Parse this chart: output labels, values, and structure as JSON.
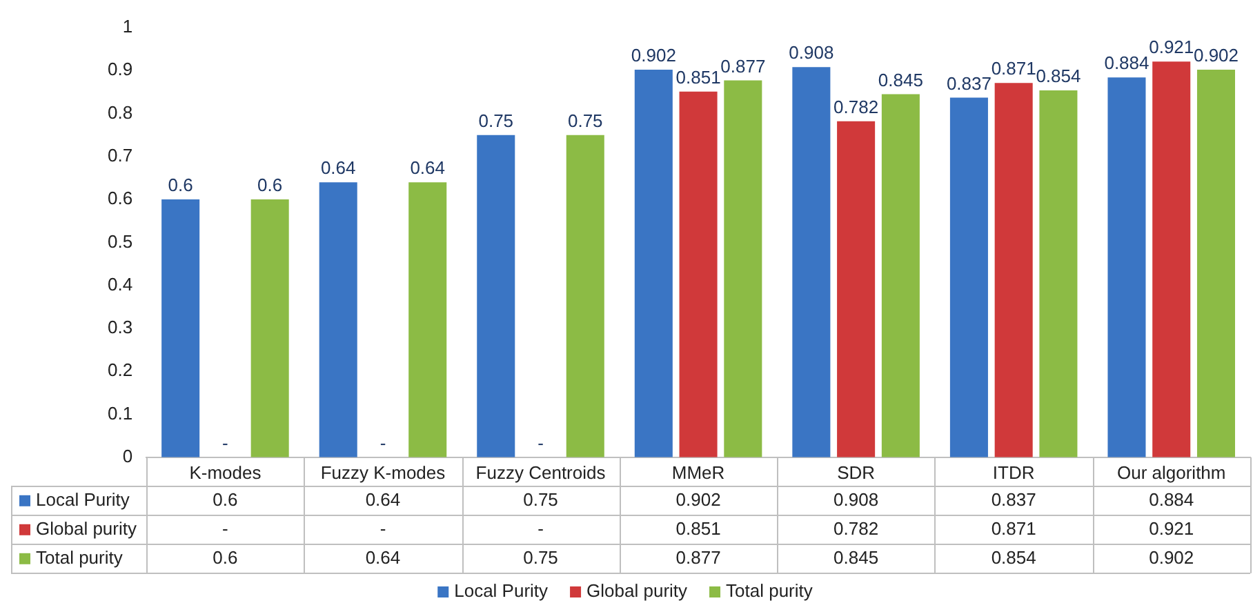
{
  "chart_data": {
    "type": "bar",
    "categories": [
      "K-modes",
      "Fuzzy K-modes",
      "Fuzzy Centroids",
      "MMeR",
      "SDR",
      "ITDR",
      "Our algorithm"
    ],
    "series": [
      {
        "name": "Local Purity",
        "color": "#3a75c4",
        "values": [
          0.6,
          0.64,
          0.75,
          0.902,
          0.908,
          0.837,
          0.884
        ],
        "value_labels": [
          "0.6",
          "0.64",
          "0.75",
          "0.902",
          "0.908",
          "0.837",
          "0.884"
        ]
      },
      {
        "name": "Global purity",
        "color": "#d0393a",
        "values": [
          null,
          null,
          null,
          0.851,
          0.782,
          0.871,
          0.921
        ],
        "value_labels": [
          "-",
          "-",
          "-",
          "0.851",
          "0.782",
          "0.871",
          "0.921"
        ]
      },
      {
        "name": "Total purity",
        "color": "#8cbb45",
        "values": [
          0.6,
          0.64,
          0.75,
          0.877,
          0.845,
          0.854,
          0.902
        ],
        "value_labels": [
          "0.6",
          "0.64",
          "0.75",
          "0.877",
          "0.845",
          "0.854",
          "0.902"
        ]
      }
    ],
    "ylim": [
      0,
      1
    ],
    "yticks": [
      0,
      0.1,
      0.2,
      0.3,
      0.4,
      0.5,
      0.6,
      0.7,
      0.8,
      0.9,
      1
    ],
    "grid": false,
    "legend": "bottom"
  }
}
